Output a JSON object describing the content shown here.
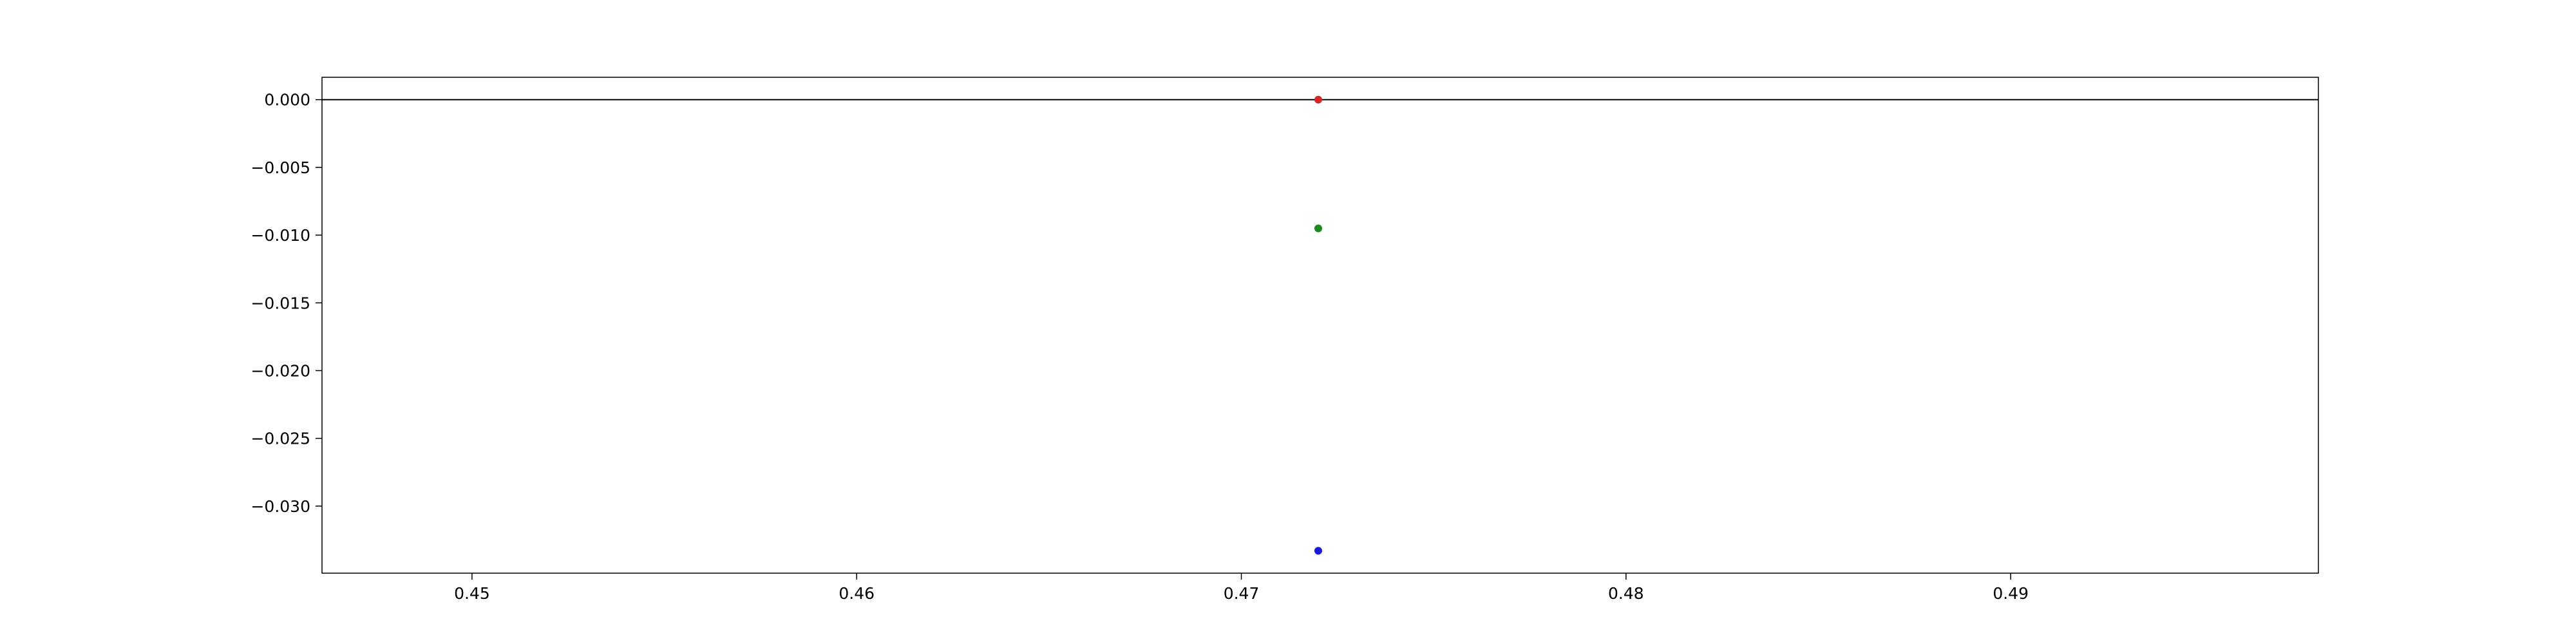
{
  "chart_data": {
    "type": "scatter",
    "title": "",
    "xlabel": "",
    "ylabel": "",
    "xlim": [
      0.4461,
      0.498
    ],
    "ylim": [
      -0.03495,
      0.00165
    ],
    "grid": false,
    "x_ticks": [
      {
        "value": 0.45,
        "label": "0.45"
      },
      {
        "value": 0.46,
        "label": "0.46"
      },
      {
        "value": 0.47,
        "label": "0.47"
      },
      {
        "value": 0.48,
        "label": "0.48"
      },
      {
        "value": 0.49,
        "label": "0.49"
      }
    ],
    "y_ticks": [
      {
        "value": 0.0,
        "label": "0.000"
      },
      {
        "value": -0.005,
        "label": "−0.005"
      },
      {
        "value": -0.01,
        "label": "−0.010"
      },
      {
        "value": -0.015,
        "label": "−0.015"
      },
      {
        "value": -0.02,
        "label": "−0.020"
      },
      {
        "value": -0.025,
        "label": "−0.025"
      },
      {
        "value": -0.03,
        "label": "−0.030"
      }
    ],
    "hlines": [
      {
        "y": 0.0,
        "color": "#000000"
      }
    ],
    "points": [
      {
        "x": 0.472,
        "y": 0.0,
        "color": "#d62728"
      },
      {
        "x": 0.472,
        "y": -0.0095,
        "color": "#1a8a1a"
      },
      {
        "x": 0.472,
        "y": -0.0333,
        "color": "#1a1ad6"
      }
    ]
  }
}
